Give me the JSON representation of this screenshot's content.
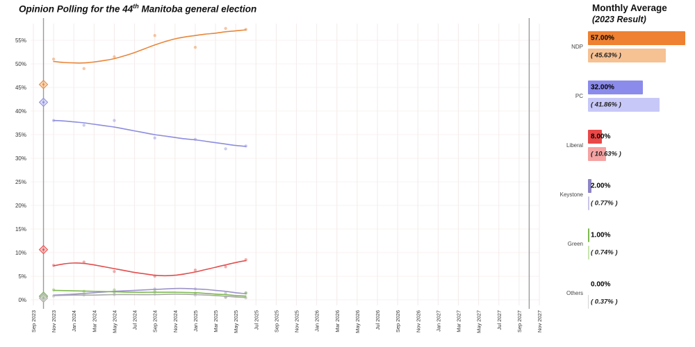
{
  "title": {
    "prefix": "Opinion Polling for the 44",
    "sup": "th",
    "suffix": " Manitoba general election"
  },
  "panel": {
    "title": "Monthly Average",
    "subtitle": "(2023 Result)",
    "bar_scale_max": 57.0,
    "rows": [
      {
        "party": "NDP",
        "avg_label": "57.00%",
        "avg": 57.0,
        "result_label": "( 45.63% )",
        "result": 45.63,
        "color": "#ee8132",
        "light": "#f6c193"
      },
      {
        "party": "PC",
        "avg_label": "32.00%",
        "avg": 32.0,
        "result_label": "( 41.86% )",
        "result": 41.86,
        "color": "#8b8bec",
        "light": "#c8c8f8"
      },
      {
        "party": "Liberal",
        "avg_label": "8.00%",
        "avg": 8.0,
        "result_label": "( 10.63% )",
        "result": 10.63,
        "color": "#e94848",
        "light": "#f5a3a3"
      },
      {
        "party": "Keystone",
        "avg_label": "2.00%",
        "avg": 2.0,
        "result_label": "( 0.77% )",
        "result": 0.77,
        "color": "#8d85c6",
        "light": "#cac4e8"
      },
      {
        "party": "Green",
        "avg_label": "1.00%",
        "avg": 1.0,
        "result_label": "( 0.74% )",
        "result": 0.74,
        "color": "#7dbb4d",
        "light": "#c7e5ad"
      },
      {
        "party": "Others",
        "avg_label": "0.00%",
        "avg": 0.0,
        "result_label": "( 0.37% )",
        "result": 0.37,
        "color": "#9e9e9e",
        "light": "#d3d3d3"
      }
    ]
  },
  "chart_data": {
    "type": "line",
    "title": "Opinion Polling for the 44th Manitoba general election",
    "x_axis": {
      "months_total": 50,
      "tick_labels": [
        "Sep 2023",
        "Nov 2023",
        "Jan 2024",
        "Mar 2024",
        "May 2024",
        "Jul 2024",
        "Sep 2024",
        "Nov 2024",
        "Jan 2025",
        "Mar 2025",
        "May 2025",
        "Jul 2025",
        "Sep 2025",
        "Nov 2025",
        "Jan 2026",
        "Mar 2026",
        "May 2026",
        "Jul 2026",
        "Sep 2026",
        "Nov 2026",
        "Jan 2027",
        "Mar 2027",
        "May 2027",
        "Jul 2027",
        "Sep 2027",
        "Nov 2027"
      ]
    },
    "y_axis": {
      "tick_values": [
        0,
        5,
        10,
        15,
        20,
        25,
        30,
        35,
        40,
        45,
        50,
        55
      ],
      "unit": "%",
      "ylim": [
        0,
        58
      ]
    },
    "election_markers_months": [
      1,
      49
    ],
    "grid_color": "#f3eaea",
    "marker_line_color": "#9a9a9a",
    "series": [
      {
        "name": "NDP",
        "color": "#e8863a",
        "light": "#f4c694",
        "result_2023": 45.63,
        "trend": [
          [
            2,
            50.5
          ],
          [
            3,
            50.3
          ],
          [
            4,
            50.2
          ],
          [
            5,
            50.2
          ],
          [
            6,
            50.4
          ],
          [
            7,
            50.7
          ],
          [
            8,
            51.1
          ],
          [
            9,
            51.7
          ],
          [
            10,
            52.4
          ],
          [
            11,
            53.2
          ],
          [
            12,
            54.0
          ],
          [
            13,
            54.7
          ],
          [
            14,
            55.3
          ],
          [
            15,
            55.7
          ],
          [
            16,
            56.0
          ],
          [
            17,
            56.3
          ],
          [
            18,
            56.5
          ],
          [
            19,
            56.8
          ],
          [
            20,
            57.0
          ],
          [
            21,
            57.2
          ]
        ],
        "points": [
          [
            2,
            51.0
          ],
          [
            5,
            49.0
          ],
          [
            8,
            51.5
          ],
          [
            12,
            56.0
          ],
          [
            16,
            53.5
          ],
          [
            19,
            57.5
          ],
          [
            21,
            57.3
          ]
        ]
      },
      {
        "name": "PC",
        "color": "#8c8ce0",
        "light": "#c9c9f2",
        "result_2023": 41.86,
        "trend": [
          [
            2,
            38.0
          ],
          [
            3,
            37.9
          ],
          [
            4,
            37.7
          ],
          [
            5,
            37.5
          ],
          [
            6,
            37.2
          ],
          [
            7,
            36.9
          ],
          [
            8,
            36.6
          ],
          [
            9,
            36.2
          ],
          [
            10,
            35.8
          ],
          [
            11,
            35.4
          ],
          [
            12,
            35.0
          ],
          [
            13,
            34.7
          ],
          [
            14,
            34.4
          ],
          [
            15,
            34.1
          ],
          [
            16,
            33.9
          ],
          [
            17,
            33.6
          ],
          [
            18,
            33.3
          ],
          [
            19,
            33.0
          ],
          [
            20,
            32.7
          ],
          [
            21,
            32.5
          ]
        ],
        "points": [
          [
            2,
            38.0
          ],
          [
            5,
            37.0
          ],
          [
            8,
            38.0
          ],
          [
            12,
            34.3
          ],
          [
            16,
            34.0
          ],
          [
            19,
            32.0
          ],
          [
            21,
            32.6
          ]
        ]
      },
      {
        "name": "Liberal",
        "color": "#e24d4d",
        "light": "#f3a6a6",
        "result_2023": 10.63,
        "trend": [
          [
            2,
            7.2
          ],
          [
            3,
            7.6
          ],
          [
            4,
            7.8
          ],
          [
            5,
            7.7
          ],
          [
            6,
            7.4
          ],
          [
            7,
            7.0
          ],
          [
            8,
            6.6
          ],
          [
            9,
            6.2
          ],
          [
            10,
            5.8
          ],
          [
            11,
            5.5
          ],
          [
            12,
            5.2
          ],
          [
            13,
            5.1
          ],
          [
            14,
            5.2
          ],
          [
            15,
            5.5
          ],
          [
            16,
            5.9
          ],
          [
            17,
            6.4
          ],
          [
            18,
            6.9
          ],
          [
            19,
            7.4
          ],
          [
            20,
            7.9
          ],
          [
            21,
            8.3
          ]
        ],
        "points": [
          [
            2,
            7.3
          ],
          [
            5,
            8.0
          ],
          [
            8,
            6.0
          ],
          [
            12,
            5.0
          ],
          [
            16,
            6.3
          ],
          [
            19,
            7.0
          ],
          [
            21,
            8.5
          ]
        ]
      },
      {
        "name": "Keystone",
        "color": "#9b93c9",
        "light": "#cdc7e8",
        "result_2023": 0.77,
        "trend": [
          [
            2,
            1.0
          ],
          [
            4,
            1.2
          ],
          [
            6,
            1.5
          ],
          [
            8,
            1.8
          ],
          [
            10,
            2.0
          ],
          [
            12,
            2.2
          ],
          [
            14,
            2.4
          ],
          [
            15,
            2.4
          ],
          [
            16,
            2.3
          ],
          [
            17,
            2.2
          ],
          [
            18,
            2.0
          ],
          [
            19,
            1.8
          ],
          [
            20,
            1.5
          ],
          [
            21,
            1.3
          ]
        ],
        "points": [
          [
            8,
            1.6
          ],
          [
            12,
            2.3
          ],
          [
            16,
            2.3
          ],
          [
            19,
            1.4
          ],
          [
            21,
            1.5
          ]
        ]
      },
      {
        "name": "Green",
        "color": "#7db84e",
        "light": "#c6e3ab",
        "result_2023": 0.74,
        "trend": [
          [
            2,
            2.0
          ],
          [
            4,
            1.9
          ],
          [
            6,
            1.8
          ],
          [
            8,
            1.7
          ],
          [
            10,
            1.6
          ],
          [
            12,
            1.6
          ],
          [
            14,
            1.6
          ],
          [
            16,
            1.5
          ],
          [
            18,
            1.2
          ],
          [
            19,
            1.1
          ],
          [
            20,
            0.9
          ],
          [
            21,
            0.8
          ]
        ],
        "points": [
          [
            2,
            2.1
          ],
          [
            5,
            1.8
          ],
          [
            8,
            2.1
          ],
          [
            12,
            1.8
          ],
          [
            16,
            1.4
          ],
          [
            19,
            0.6
          ],
          [
            21,
            1.4
          ]
        ]
      },
      {
        "name": "Others",
        "color": "#a8a8a8",
        "light": "#d6d6d6",
        "result_2023": 0.37,
        "trend": [
          [
            2,
            0.9
          ],
          [
            4,
            1.0
          ],
          [
            6,
            1.0
          ],
          [
            8,
            1.1
          ],
          [
            10,
            1.1
          ],
          [
            12,
            1.1
          ],
          [
            14,
            1.2
          ],
          [
            16,
            1.1
          ],
          [
            18,
            0.9
          ],
          [
            20,
            0.6
          ],
          [
            21,
            0.5
          ]
        ],
        "points": [
          [
            2,
            0.8
          ],
          [
            5,
            1.0
          ],
          [
            8,
            1.1
          ],
          [
            12,
            1.2
          ],
          [
            16,
            1.0
          ],
          [
            19,
            0.5
          ],
          [
            21,
            0.4
          ]
        ]
      }
    ]
  }
}
